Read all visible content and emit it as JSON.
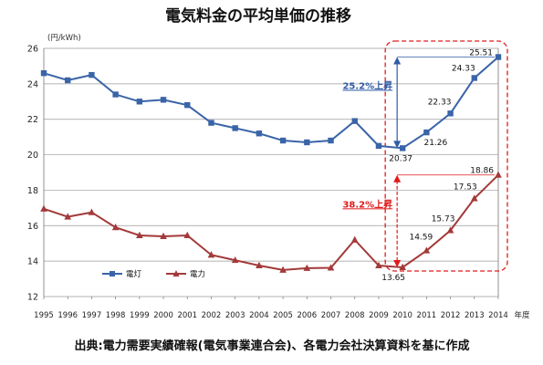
{
  "chart_data": {
    "type": "line",
    "title": "電気料金の平均単価の推移",
    "unit_label": "(円/kWh)",
    "x_axis_suffix": "年度",
    "source": "出典:電力需要実績確報(電気事業連合会)、各電力会社決算資料を基に作成",
    "x": [
      1995,
      1996,
      1997,
      1998,
      1999,
      2000,
      2001,
      2002,
      2003,
      2004,
      2005,
      2006,
      2007,
      2008,
      2009,
      2010,
      2011,
      2012,
      2013,
      2014
    ],
    "ylim": [
      12,
      26
    ],
    "yticks": [
      12,
      14,
      16,
      18,
      20,
      22,
      24,
      26
    ],
    "grid": true,
    "legend_position": "bottom-left",
    "series": [
      {
        "name": "電灯",
        "color": "#3a64a8",
        "marker": "square",
        "values": [
          24.6,
          24.2,
          24.5,
          23.4,
          23.0,
          23.1,
          22.8,
          21.8,
          21.5,
          21.2,
          20.8,
          20.7,
          20.8,
          21.9,
          20.5,
          20.37,
          21.26,
          22.33,
          24.33,
          25.51
        ],
        "labels": [
          {
            "year": 2010,
            "text": "20.37"
          },
          {
            "year": 2011,
            "text": "21.26"
          },
          {
            "year": 2012,
            "text": "22.33"
          },
          {
            "year": 2013,
            "text": "24.33"
          },
          {
            "year": 2014,
            "text": "25.51"
          }
        ]
      },
      {
        "name": "電力",
        "color": "#a33a3a",
        "marker": "triangle",
        "values": [
          16.95,
          16.5,
          16.75,
          15.9,
          15.45,
          15.4,
          15.45,
          14.35,
          14.05,
          13.75,
          13.5,
          13.6,
          13.62,
          15.2,
          13.75,
          13.65,
          14.59,
          15.73,
          17.53,
          18.86
        ],
        "labels": [
          {
            "year": 2010,
            "text": "13.65"
          },
          {
            "year": 2011,
            "text": "14.59"
          },
          {
            "year": 2012,
            "text": "15.73"
          },
          {
            "year": 2013,
            "text": "17.53"
          },
          {
            "year": 2014,
            "text": "18.86"
          }
        ]
      }
    ],
    "annotations": [
      {
        "text": "25.2%上昇",
        "color": "#2f5ba6",
        "from_year": 2010,
        "from": 20.37,
        "to": 25.51
      },
      {
        "text": "38.2%上昇",
        "color": "#e01a1a",
        "from_year": 2010,
        "from": 13.65,
        "to": 18.86
      }
    ],
    "highlight": {
      "color": "#e01a1a",
      "from_year": 2010,
      "to_year": 2014
    }
  }
}
